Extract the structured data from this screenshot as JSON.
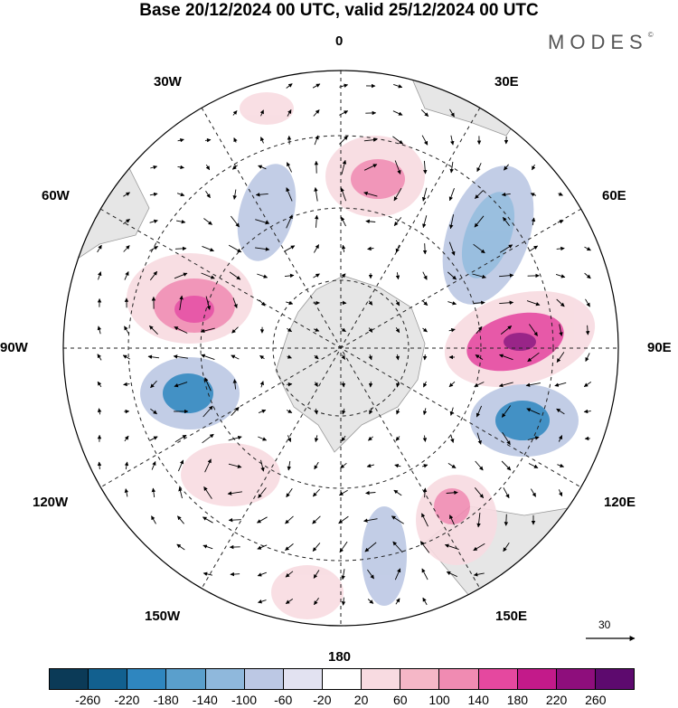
{
  "title": "Base 20/12/2024 00 UTC, valid 25/12/2024 00 UTC",
  "logo": "MODES",
  "logo_mark": "©",
  "map": {
    "projection": "south-polar-stereographic",
    "longitude_labels": {
      "lon_0": "0",
      "lon_30E": "30E",
      "lon_60E": "60E",
      "lon_90E": "90E",
      "lon_120E": "120E",
      "lon_150E": "150E",
      "lon_180": "180",
      "lon_150W": "150W",
      "lon_120W": "120W",
      "lon_90W": "90W",
      "lon_60W": "60W",
      "lon_30W": "30W"
    },
    "reference_vector_label": "30"
  },
  "colorbar": {
    "ticks": [
      "-260",
      "-220",
      "-180",
      "-140",
      "-100",
      "-60",
      "-20",
      "20",
      "60",
      "100",
      "140",
      "180",
      "220",
      "260"
    ],
    "colors": [
      "#0b3a57",
      "#12608f",
      "#2f86bf",
      "#5a9fcc",
      "#8fb8dc",
      "#bcc8e4",
      "#e2e2f1",
      "#ffffff",
      "#f8dbe1",
      "#f5b7c7",
      "#f08bb2",
      "#e5489f",
      "#c31a8a",
      "#8e0e7c",
      "#5d0a6e"
    ]
  }
}
